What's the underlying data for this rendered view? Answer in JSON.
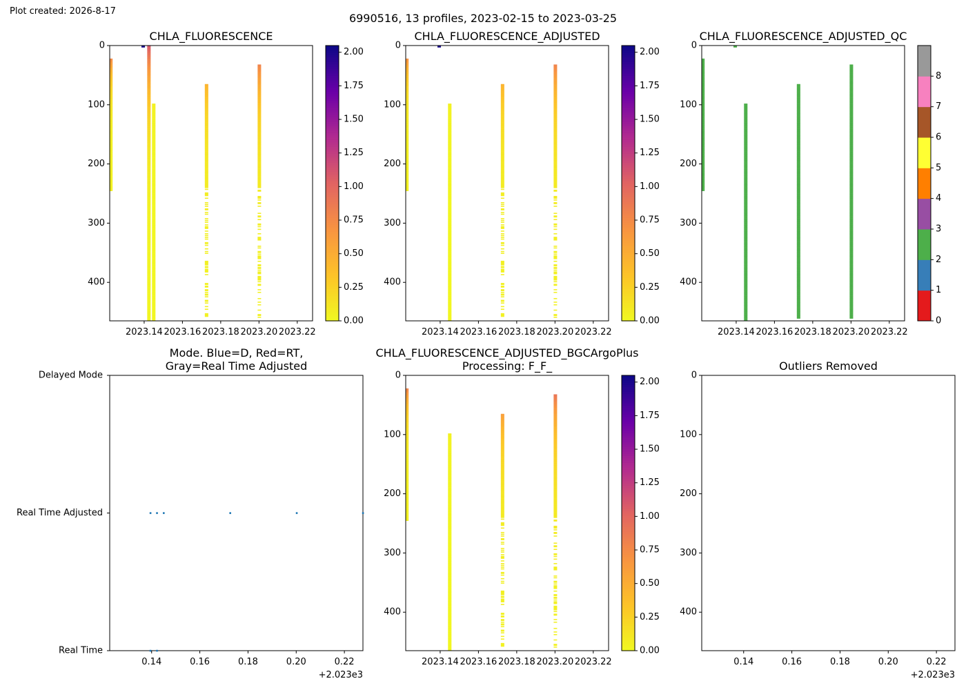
{
  "page": {
    "created_label": "Plot created: 2026-8-17",
    "suptitle": "6990516, 13 profiles, 2023-02-15 to 2023-03-25"
  },
  "colors": {
    "plasma_r": [
      "#f0f921",
      "#fdc328",
      "#f89441",
      "#e16462",
      "#b12a90",
      "#6a00a8",
      "#0d0887"
    ],
    "qc": [
      "#e41a1c",
      "#377eb8",
      "#4daf4a",
      "#984ea3",
      "#ff7f00",
      "#ffff33",
      "#a65628",
      "#f781bf",
      "#999999"
    ],
    "mode_marker": "#1f77b4"
  },
  "chart_data": [
    {
      "id": "chla",
      "type": "heatmap",
      "title": "CHLA_FLUORESCENCE",
      "xlim": [
        2023.122,
        2023.228
      ],
      "ylim": [
        465,
        0
      ],
      "x_ticks": [
        "2023.14",
        "2023.16",
        "2023.18",
        "2023.20",
        "2023.22"
      ],
      "x_tick_values": [
        2023.14,
        2023.16,
        2023.18,
        2023.2,
        2023.22
      ],
      "y_ticks": [
        0,
        100,
        200,
        300,
        400
      ],
      "colorbar": {
        "min": 0,
        "max": 2.05,
        "ticks": [
          "0.00",
          "0.25",
          "0.50",
          "0.75",
          "1.00",
          "1.25",
          "1.50",
          "1.75",
          "2.00"
        ],
        "tick_values": [
          0,
          0.25,
          0.5,
          0.75,
          1.0,
          1.25,
          1.5,
          1.75,
          2.0
        ]
      },
      "profiles": [
        {
          "time": 2023.1226,
          "depth_min": 22,
          "depth_max": 245,
          "surface_value": 0.75,
          "deep_value": 0.05,
          "sparse": false
        },
        {
          "time": 2023.1395,
          "depth_min": 0,
          "depth_max": 2,
          "surface_value": 2.0,
          "deep_value": 2.0,
          "sparse": false
        },
        {
          "time": 2023.1425,
          "depth_min": 0,
          "depth_max": 465,
          "surface_value": 1.1,
          "deep_value": 0.02,
          "sparse": false
        },
        {
          "time": 2023.145,
          "depth_min": 98,
          "depth_max": 465,
          "surface_value": 0.05,
          "deep_value": 0.02,
          "sparse": false
        },
        {
          "time": 2023.1726,
          "depth_min": 65,
          "depth_max": 460,
          "surface_value": 0.45,
          "deep_value": 0.05,
          "sparse": true
        },
        {
          "time": 2023.2002,
          "depth_min": 32,
          "depth_max": 460,
          "surface_value": 0.8,
          "deep_value": 0.05,
          "sparse": true
        }
      ]
    },
    {
      "id": "chla_adj",
      "type": "heatmap",
      "title": "CHLA_FLUORESCENCE_ADJUSTED",
      "xlim": [
        2023.122,
        2023.228
      ],
      "ylim": [
        465,
        0
      ],
      "x_ticks": [
        "2023.14",
        "2023.16",
        "2023.18",
        "2023.20",
        "2023.22"
      ],
      "x_tick_values": [
        2023.14,
        2023.16,
        2023.18,
        2023.2,
        2023.22
      ],
      "y_ticks": [
        0,
        100,
        200,
        300,
        400
      ],
      "colorbar": {
        "min": 0,
        "max": 2.05,
        "ticks": [
          "0.00",
          "0.25",
          "0.50",
          "0.75",
          "1.00",
          "1.25",
          "1.50",
          "1.75",
          "2.00"
        ],
        "tick_values": [
          0,
          0.25,
          0.5,
          0.75,
          1.0,
          1.25,
          1.5,
          1.75,
          2.0
        ]
      },
      "profiles": [
        {
          "time": 2023.1226,
          "depth_min": 22,
          "depth_max": 245,
          "surface_value": 0.7,
          "deep_value": 0.05,
          "sparse": false
        },
        {
          "time": 2023.1395,
          "depth_min": 0,
          "depth_max": 2,
          "surface_value": 2.0,
          "deep_value": 2.0,
          "sparse": false
        },
        {
          "time": 2023.145,
          "depth_min": 98,
          "depth_max": 465,
          "surface_value": 0.05,
          "deep_value": 0.02,
          "sparse": false
        },
        {
          "time": 2023.1726,
          "depth_min": 65,
          "depth_max": 460,
          "surface_value": 0.45,
          "deep_value": 0.05,
          "sparse": true
        },
        {
          "time": 2023.2002,
          "depth_min": 32,
          "depth_max": 460,
          "surface_value": 0.8,
          "deep_value": 0.05,
          "sparse": true
        }
      ]
    },
    {
      "id": "chla_qc",
      "type": "heatmap",
      "title": "CHLA_FLUORESCENCE_ADJUSTED_QC",
      "xlim": [
        2023.122,
        2023.228
      ],
      "ylim": [
        465,
        0
      ],
      "x_ticks": [
        "2023.14",
        "2023.16",
        "2023.18",
        "2023.20",
        "2023.22"
      ],
      "x_tick_values": [
        2023.14,
        2023.16,
        2023.18,
        2023.2,
        2023.22
      ],
      "y_ticks": [
        0,
        100,
        200,
        300,
        400
      ],
      "colorbar": {
        "min": 0,
        "max": 9,
        "ticks": [
          "0",
          "1",
          "2",
          "3",
          "4",
          "5",
          "6",
          "7",
          "8"
        ],
        "tick_values": [
          0,
          1,
          2,
          3,
          4,
          5,
          6,
          7,
          8
        ]
      },
      "profiles": [
        {
          "time": 2023.1226,
          "depth_min": 22,
          "depth_max": 245,
          "qc": 2
        },
        {
          "time": 2023.1395,
          "depth_min": 0,
          "depth_max": 2,
          "qc": 2
        },
        {
          "time": 2023.145,
          "depth_min": 98,
          "depth_max": 465,
          "qc": 2
        },
        {
          "time": 2023.1726,
          "depth_min": 65,
          "depth_max": 460,
          "qc": 2
        },
        {
          "time": 2023.2002,
          "depth_min": 32,
          "depth_max": 460,
          "qc": 2
        }
      ]
    },
    {
      "id": "mode",
      "type": "scatter",
      "title_lines": [
        "Mode. Blue=D, Red=RT,",
        "Gray=Real Time Adjusted"
      ],
      "xlim": [
        2023.1226,
        2023.2277
      ],
      "x_ticks": [
        "0.14",
        "0.16",
        "0.18",
        "0.20",
        "0.22"
      ],
      "x_tick_values": [
        2023.14,
        2023.16,
        2023.18,
        2023.2,
        2023.22
      ],
      "x_offset_label": "+2.023e3",
      "y_categories": [
        "Real Time",
        "Real Time Adjusted",
        "Delayed Mode"
      ],
      "points": [
        {
          "x": 2023.1395,
          "y": "Real Time Adjusted"
        },
        {
          "x": 2023.1422,
          "y": "Real Time Adjusted"
        },
        {
          "x": 2023.145,
          "y": "Real Time Adjusted"
        },
        {
          "x": 2023.1726,
          "y": "Real Time Adjusted"
        },
        {
          "x": 2023.2002,
          "y": "Real Time Adjusted"
        },
        {
          "x": 2023.2277,
          "y": "Real Time Adjusted"
        },
        {
          "x": 2023.1395,
          "y": "Real Time"
        },
        {
          "x": 2023.1422,
          "y": "Real Time"
        }
      ]
    },
    {
      "id": "bgc",
      "type": "heatmap",
      "title_lines": [
        "CHLA_FLUORESCENCE_ADJUSTED_BGCArgoPlus",
        "Processing: F_F_"
      ],
      "xlim": [
        2023.122,
        2023.228
      ],
      "ylim": [
        465,
        0
      ],
      "x_ticks": [
        "2023.14",
        "2023.16",
        "2023.18",
        "2023.20",
        "2023.22"
      ],
      "x_tick_values": [
        2023.14,
        2023.16,
        2023.18,
        2023.2,
        2023.22
      ],
      "y_ticks": [
        0,
        100,
        200,
        300,
        400
      ],
      "colorbar": {
        "min": 0,
        "max": 2.05,
        "ticks": [
          "0.00",
          "0.25",
          "0.50",
          "0.75",
          "1.00",
          "1.25",
          "1.50",
          "1.75",
          "2.00"
        ],
        "tick_values": [
          0,
          0.25,
          0.5,
          0.75,
          1.0,
          1.25,
          1.5,
          1.75,
          2.0
        ]
      },
      "profiles": [
        {
          "time": 2023.1226,
          "depth_min": 22,
          "depth_max": 245,
          "surface_value": 0.8,
          "deep_value": 0.05,
          "sparse": false
        },
        {
          "time": 2023.145,
          "depth_min": 98,
          "depth_max": 465,
          "surface_value": 0.05,
          "deep_value": 0.02,
          "sparse": false
        },
        {
          "time": 2023.1726,
          "depth_min": 65,
          "depth_max": 460,
          "surface_value": 0.6,
          "deep_value": 0.05,
          "sparse": true
        },
        {
          "time": 2023.2002,
          "depth_min": 32,
          "depth_max": 460,
          "surface_value": 0.9,
          "deep_value": 0.05,
          "sparse": true
        }
      ]
    },
    {
      "id": "outliers",
      "type": "scatter",
      "title": "Outliers Removed",
      "xlim": [
        2023.1226,
        2023.2277
      ],
      "ylim": [
        465,
        0
      ],
      "x_ticks": [
        "0.14",
        "0.16",
        "0.18",
        "0.20",
        "0.22"
      ],
      "x_tick_values": [
        2023.14,
        2023.16,
        2023.18,
        2023.2,
        2023.22
      ],
      "x_offset_label": "+2.023e3",
      "y_ticks": [
        0,
        100,
        200,
        300,
        400
      ],
      "points": []
    }
  ]
}
